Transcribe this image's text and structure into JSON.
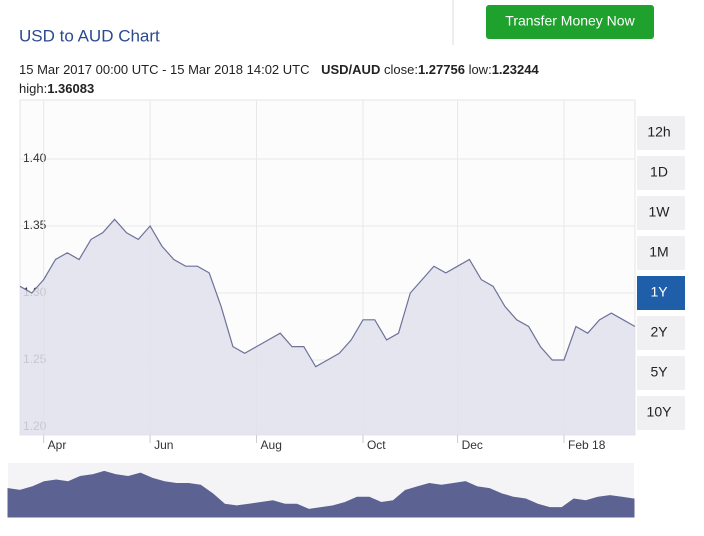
{
  "chart_data": {
    "type": "area",
    "title": "USD to AUD Chart",
    "period": "15 Mar 2017 00:00 UTC - 15 Mar 2018 14:02 UTC",
    "pair": "USD/AUD",
    "stats": [
      {
        "label": "close:",
        "value": 1.27756
      },
      {
        "label": "low:",
        "value": 1.23244
      },
      {
        "label": "high:",
        "value": 1.36083
      }
    ],
    "categories": [
      null,
      null,
      "Apr",
      null,
      null,
      null,
      null,
      null,
      null,
      null,
      null,
      "Jun",
      null,
      null,
      null,
      null,
      null,
      null,
      null,
      null,
      "Aug",
      null,
      null,
      null,
      null,
      null,
      null,
      null,
      null,
      "Oct",
      null,
      null,
      null,
      null,
      null,
      null,
      null,
      "Dec",
      null,
      null,
      null,
      null,
      null,
      null,
      null,
      null,
      "Feb 18",
      null,
      null,
      null,
      null,
      null,
      null
    ],
    "values": [
      1.305,
      1.3,
      1.31,
      1.325,
      1.33,
      1.325,
      1.34,
      1.345,
      1.355,
      1.345,
      1.34,
      1.35,
      1.335,
      1.325,
      1.32,
      1.32,
      1.315,
      1.29,
      1.26,
      1.255,
      1.26,
      1.265,
      1.27,
      1.26,
      1.26,
      1.245,
      1.25,
      1.255,
      1.265,
      1.28,
      1.28,
      1.265,
      1.27,
      1.3,
      1.31,
      1.32,
      1.315,
      1.32,
      1.325,
      1.31,
      1.305,
      1.29,
      1.28,
      1.275,
      1.26,
      1.25,
      1.25,
      1.275,
      1.27,
      1.28,
      1.285,
      1.28,
      1.275
    ],
    "color": "#6d7299",
    "fill": "#dfe0ec",
    "navigator_color": "#5c6392",
    "ylim": [
      1.194,
      1.444
    ],
    "yticks": [
      {
        "value": 1.2,
        "label": "1.20"
      },
      1.25,
      {
        "value": 1.3,
        "label": "1.30"
      },
      1.35,
      {
        "value": 1.4,
        "label": "1.40"
      }
    ],
    "grid": true
  },
  "ui": {
    "transfer_button": "Transfer Money Now",
    "ranges": [
      "12h",
      "1D",
      "1W",
      "1M",
      "1Y",
      "2Y",
      "5Y",
      "10Y"
    ],
    "active_range": 4
  }
}
